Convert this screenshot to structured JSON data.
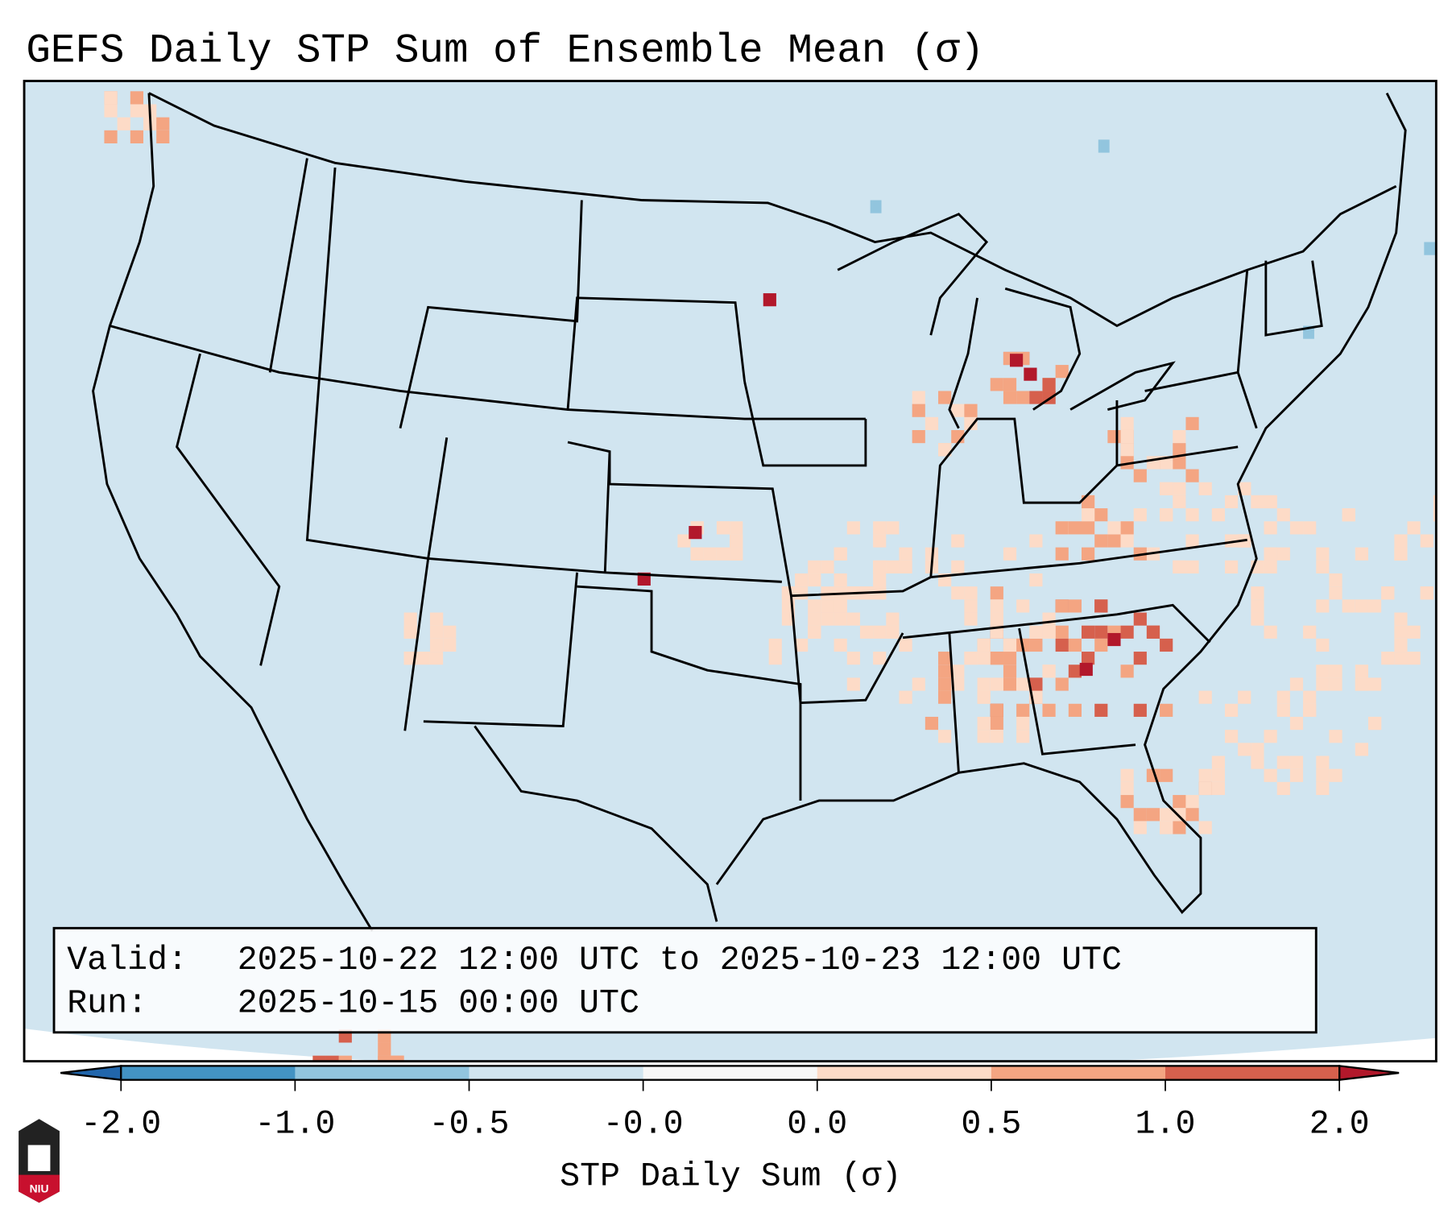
{
  "title": "GEFS Daily STP Sum of Ensemble Mean (σ)",
  "info_box": {
    "valid_label": "Valid:",
    "valid_value": "2025-10-22 12:00 UTC to 2025-10-23 12:00 UTC",
    "run_label": "Run:",
    "run_value": "2025-10-15 00:00 UTC"
  },
  "colorbar": {
    "label": "STP Daily Sum (σ)",
    "ticks": [
      "-2.0",
      "-1.0",
      "-0.5",
      "-0.0",
      "0.0",
      "0.5",
      "1.0",
      "2.0"
    ],
    "colors": [
      "#4393c3",
      "#92c5de",
      "#d1e5f0",
      "#f7f7f7",
      "#fddbc7",
      "#f4a582",
      "#d6604d"
    ],
    "extend_low": "#2166ac",
    "extend_high": "#b2182b"
  },
  "logo": {
    "text": "NIU"
  },
  "map": {
    "background": "#d1e5f0",
    "anomaly_colors": {
      "light": "#fddbc7",
      "medium": "#f4a582",
      "strong": "#d6604d",
      "extreme": "#b2182b",
      "neg": "#92c5de"
    }
  }
}
